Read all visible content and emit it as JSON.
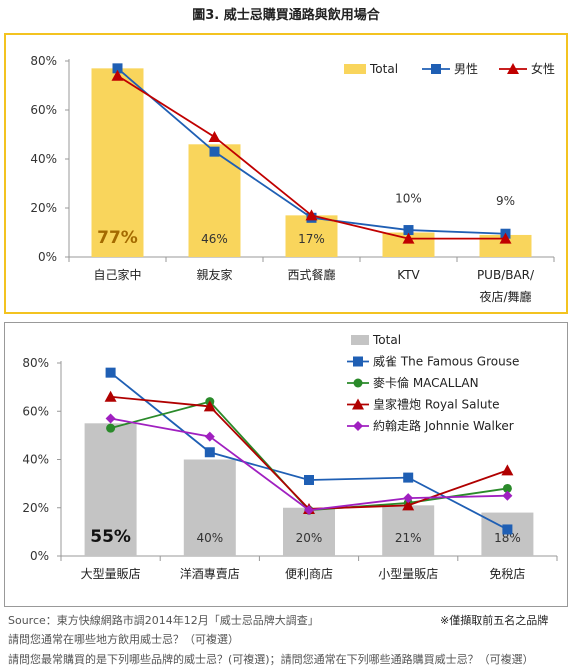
{
  "title": "圖3. 威士忌購買通路與飲用場合",
  "colors": {
    "total1": "#f9d55c",
    "men": "#1f5fb4",
    "women": "#c00000",
    "total2": "#c4c4c4",
    "macallan": "#2a8a2a",
    "royal": "#b00000",
    "johnnie": "#a020c0"
  },
  "chart_data": [
    {
      "type": "bar",
      "categories": [
        "自己家中",
        "親友家",
        "西式餐廳",
        "KTV",
        "PUB/BAR/\n夜店/舞廳"
      ],
      "category_lines": [
        [
          "自己家中"
        ],
        [
          "親友家"
        ],
        [
          "西式餐廳"
        ],
        [
          "KTV"
        ],
        [
          "PUB/BAR/",
          "夜店/舞廳"
        ]
      ],
      "ylim": [
        0,
        80
      ],
      "yticks": [
        "0%",
        "20%",
        "40%",
        "60%",
        "80%"
      ],
      "series": [
        {
          "name": "Total",
          "kind": "bar",
          "values": [
            77,
            46,
            17,
            10,
            9
          ],
          "labels": [
            "77%",
            "46%",
            "17%",
            "10%",
            "9%"
          ]
        },
        {
          "name": "男性",
          "kind": "line",
          "marker": "square",
          "values": [
            77,
            43,
            16,
            11,
            9.5
          ]
        },
        {
          "name": "女性",
          "kind": "line",
          "marker": "triangle",
          "values": [
            74,
            49,
            17,
            7.5,
            7.5
          ]
        }
      ],
      "legend": "top-right"
    },
    {
      "type": "bar",
      "categories": [
        "大型量販店",
        "洋酒專賣店",
        "便利商店",
        "小型量販店",
        "免稅店"
      ],
      "category_lines": [
        [
          "大型量販店"
        ],
        [
          "洋酒專賣店"
        ],
        [
          "便利商店"
        ],
        [
          "小型量販店"
        ],
        [
          "免稅店"
        ]
      ],
      "ylim": [
        0,
        80
      ],
      "yticks": [
        "0%",
        "20%",
        "40%",
        "60%",
        "80%"
      ],
      "series": [
        {
          "name": "Total",
          "kind": "bar",
          "values": [
            55,
            40,
            20,
            21,
            18
          ],
          "labels": [
            "55%",
            "40%",
            "20%",
            "21%",
            "18%"
          ]
        },
        {
          "name": "威雀 The Famous Grouse",
          "kind": "line",
          "marker": "square",
          "values": [
            76,
            43,
            31.5,
            32.5,
            11
          ]
        },
        {
          "name": "麥卡倫 MACALLAN",
          "kind": "line",
          "marker": "circle",
          "values": [
            53,
            64,
            19,
            22,
            28
          ]
        },
        {
          "name": "皇家禮炮 Royal Salute",
          "kind": "line",
          "marker": "triangle",
          "values": [
            66,
            62,
            19.5,
            21,
            35.5
          ]
        },
        {
          "name": "約翰走路 Johnnie Walker",
          "kind": "line",
          "marker": "diamond",
          "values": [
            57,
            49.5,
            19,
            24,
            25
          ]
        }
      ],
      "legend": "top-right"
    }
  ],
  "footer": {
    "source": "Source：東方快線網路市調2014年12月「威士忌品牌大調查」",
    "note": "※僅擷取前五名之品牌",
    "q1": "請問您通常在哪些地方飲用威士忌？（可複選）",
    "q2": "請問您最常購買的是下列哪些品牌的威士忌？(可複選)；請問您通常在下列哪些通路購買威士忌？（可複選）"
  }
}
